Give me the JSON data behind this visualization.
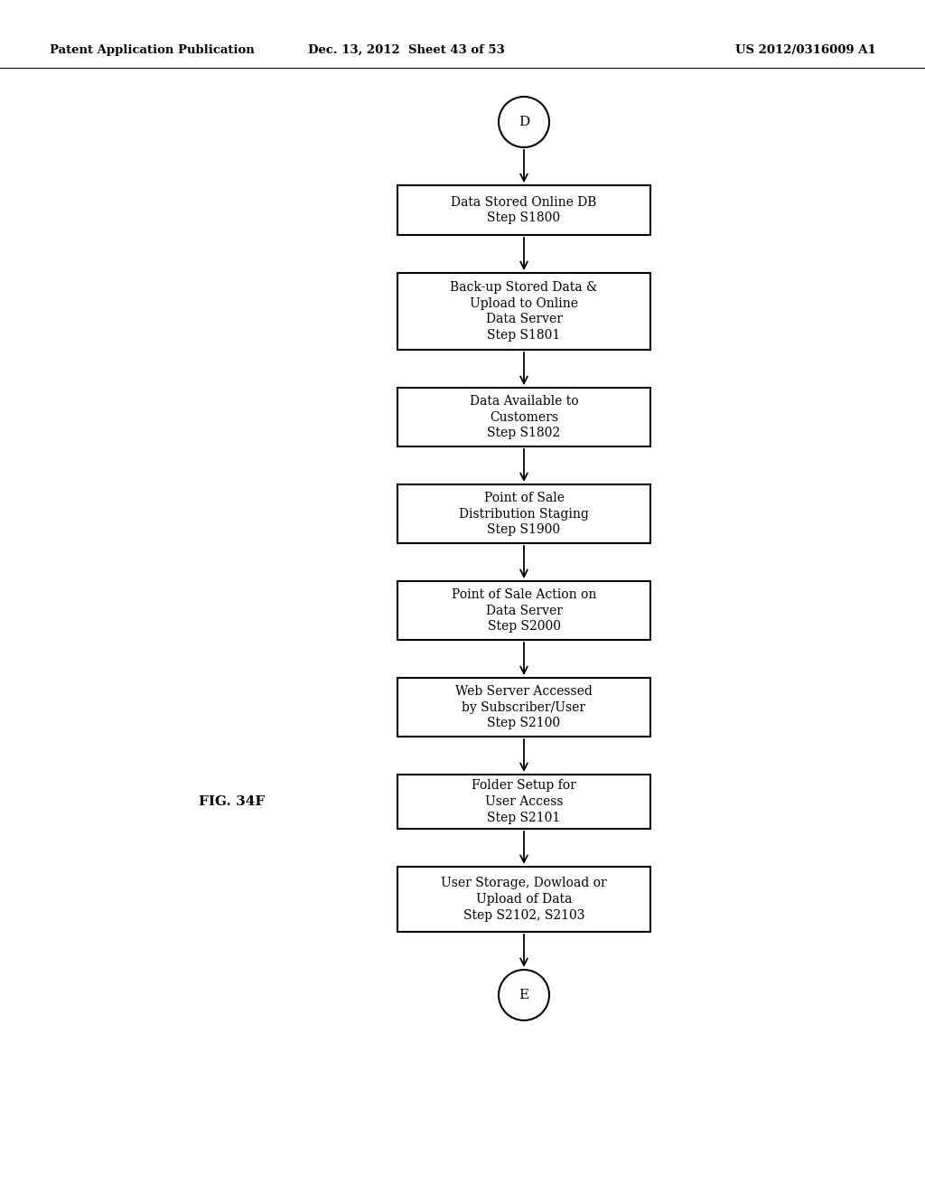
{
  "header_left": "Patent Application Publication",
  "header_mid": "Dec. 13, 2012  Sheet 43 of 53",
  "header_right": "US 2012/0316009 A1",
  "fig_label": "FIG. 34F",
  "start_label": "D",
  "end_label": "E",
  "boxes": [
    {
      "label": "Data Stored Online DB\nStep S1800"
    },
    {
      "label": "Back-up Stored Data &\nUpload to Online\nData Server\nStep S1801"
    },
    {
      "label": "Data Available to\nCustomers\nStep S1802"
    },
    {
      "label": "Point of Sale\nDistribution Staging\nStep S1900"
    },
    {
      "label": "Point of Sale Action on\nData Server\nStep S2000"
    },
    {
      "label": "Web Server Accessed\nby Subscriber/User\nStep S2100"
    },
    {
      "label": "Folder Setup for\nUser Access\nStep S2101"
    },
    {
      "label": "User Storage, Dowload or\nUpload of Data\nStep S2102, S2103"
    }
  ],
  "bg_color": "#ffffff",
  "box_edge_color": "#000000",
  "text_color": "#000000",
  "arrow_color": "#000000",
  "font_size": 10,
  "header_font_size": 9.5,
  "fig_label_fontsize": 11
}
